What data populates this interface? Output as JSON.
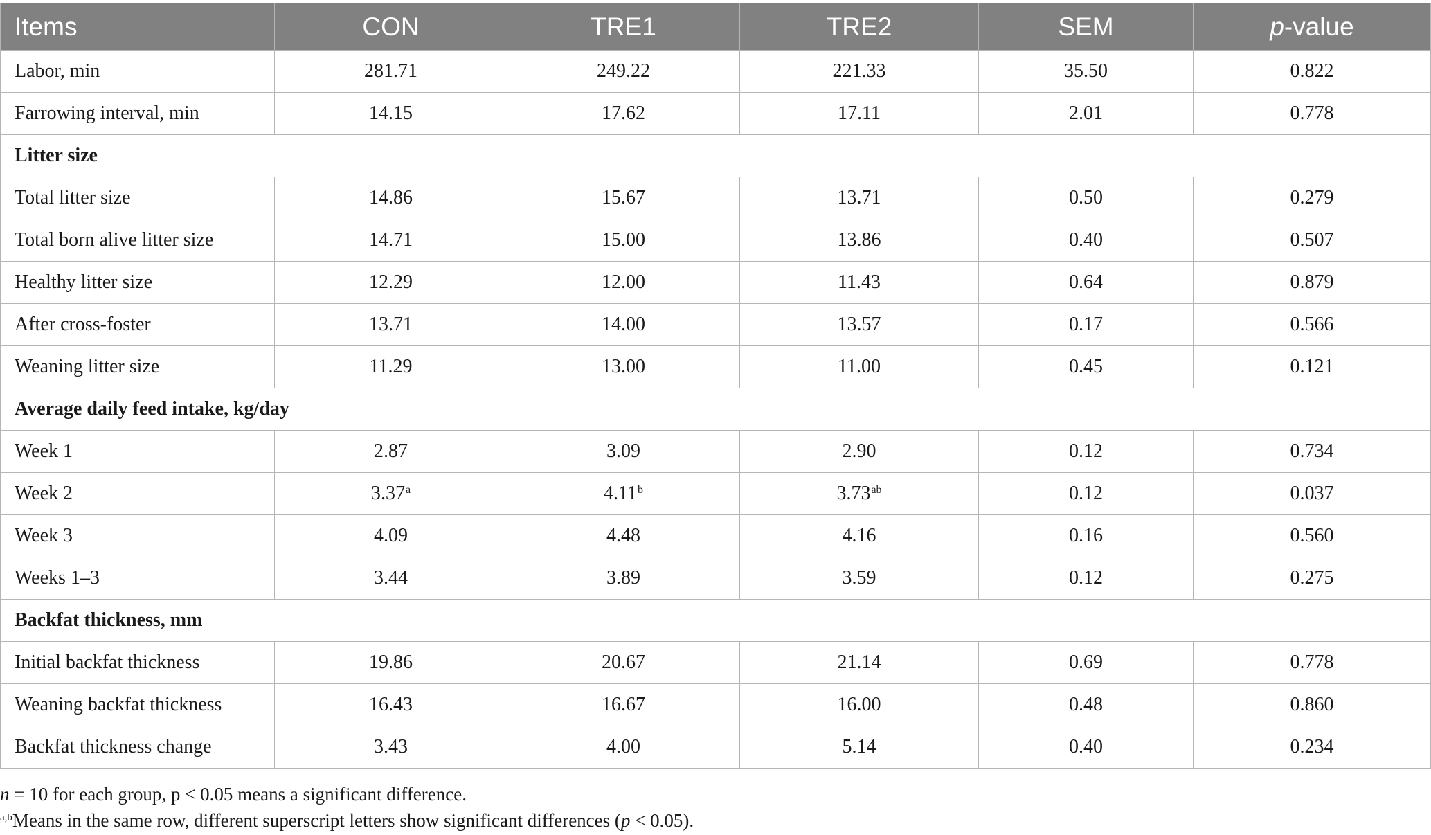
{
  "table": {
    "columns": [
      "Items",
      "CON",
      "TRE1",
      "TRE2",
      "SEM",
      "p-value"
    ],
    "pvalue_header": {
      "p": "p",
      "rest": "-value"
    },
    "rows": [
      {
        "type": "data",
        "cells": [
          {
            "v": "Labor, min"
          },
          {
            "v": "281.71"
          },
          {
            "v": "249.22"
          },
          {
            "v": "221.33"
          },
          {
            "v": "35.50"
          },
          {
            "v": "0.822"
          }
        ]
      },
      {
        "type": "data",
        "cells": [
          {
            "v": "Farrowing interval, min"
          },
          {
            "v": "14.15"
          },
          {
            "v": "17.62"
          },
          {
            "v": "17.11"
          },
          {
            "v": "2.01"
          },
          {
            "v": "0.778"
          }
        ]
      },
      {
        "type": "section",
        "label": "Litter size"
      },
      {
        "type": "data",
        "cells": [
          {
            "v": "Total litter size"
          },
          {
            "v": "14.86"
          },
          {
            "v": "15.67"
          },
          {
            "v": "13.71"
          },
          {
            "v": "0.50"
          },
          {
            "v": "0.279"
          }
        ]
      },
      {
        "type": "data",
        "cells": [
          {
            "v": "Total born alive litter size"
          },
          {
            "v": "14.71"
          },
          {
            "v": "15.00"
          },
          {
            "v": "13.86"
          },
          {
            "v": "0.40"
          },
          {
            "v": "0.507"
          }
        ]
      },
      {
        "type": "data",
        "cells": [
          {
            "v": "Healthy litter size"
          },
          {
            "v": "12.29"
          },
          {
            "v": "12.00"
          },
          {
            "v": "11.43"
          },
          {
            "v": "0.64"
          },
          {
            "v": "0.879"
          }
        ]
      },
      {
        "type": "data",
        "cells": [
          {
            "v": "After cross-foster"
          },
          {
            "v": "13.71"
          },
          {
            "v": "14.00"
          },
          {
            "v": "13.57"
          },
          {
            "v": "0.17"
          },
          {
            "v": "0.566"
          }
        ]
      },
      {
        "type": "data",
        "cells": [
          {
            "v": "Weaning litter size"
          },
          {
            "v": "11.29"
          },
          {
            "v": "13.00"
          },
          {
            "v": "11.00"
          },
          {
            "v": "0.45"
          },
          {
            "v": "0.121"
          }
        ]
      },
      {
        "type": "section",
        "label": "Average daily feed intake, kg/day"
      },
      {
        "type": "data",
        "cells": [
          {
            "v": "Week 1"
          },
          {
            "v": "2.87"
          },
          {
            "v": "3.09"
          },
          {
            "v": "2.90"
          },
          {
            "v": "0.12"
          },
          {
            "v": "0.734"
          }
        ]
      },
      {
        "type": "data",
        "cells": [
          {
            "v": "Week 2"
          },
          {
            "v": "3.37",
            "sup": "a"
          },
          {
            "v": "4.11",
            "sup": "b"
          },
          {
            "v": "3.73",
            "sup": "ab"
          },
          {
            "v": "0.12"
          },
          {
            "v": "0.037"
          }
        ]
      },
      {
        "type": "data",
        "cells": [
          {
            "v": "Week 3"
          },
          {
            "v": "4.09"
          },
          {
            "v": "4.48"
          },
          {
            "v": "4.16"
          },
          {
            "v": "0.16"
          },
          {
            "v": "0.560"
          }
        ]
      },
      {
        "type": "data",
        "cells": [
          {
            "v": "Weeks 1–3"
          },
          {
            "v": "3.44"
          },
          {
            "v": "3.89"
          },
          {
            "v": "3.59"
          },
          {
            "v": "0.12"
          },
          {
            "v": "0.275"
          }
        ]
      },
      {
        "type": "section",
        "label": "Backfat thickness, mm"
      },
      {
        "type": "data",
        "cells": [
          {
            "v": "Initial backfat thickness"
          },
          {
            "v": "19.86"
          },
          {
            "v": "20.67"
          },
          {
            "v": "21.14"
          },
          {
            "v": "0.69"
          },
          {
            "v": "0.778"
          }
        ]
      },
      {
        "type": "data",
        "cells": [
          {
            "v": "Weaning backfat thickness"
          },
          {
            "v": "16.43"
          },
          {
            "v": "16.67"
          },
          {
            "v": "16.00"
          },
          {
            "v": "0.48"
          },
          {
            "v": "0.860"
          }
        ]
      },
      {
        "type": "data",
        "cells": [
          {
            "v": "Backfat thickness change"
          },
          {
            "v": "3.43"
          },
          {
            "v": "4.00"
          },
          {
            "v": "5.14"
          },
          {
            "v": "0.40"
          },
          {
            "v": "0.234"
          }
        ]
      }
    ]
  },
  "footnotes": {
    "note1": {
      "n": "n",
      "text": " = 10 for each group, p < 0.05 means a significant difference."
    },
    "note2": {
      "sup": "a,b",
      "text": "Means in the same row, different superscript letters show significant differences (",
      "p": "p",
      "tail": " < 0.05)."
    }
  },
  "colors": {
    "header_bg": "#818181",
    "header_text": "#ffffff",
    "border": "#b5b5b5",
    "body_text": "#1a1a1a"
  }
}
